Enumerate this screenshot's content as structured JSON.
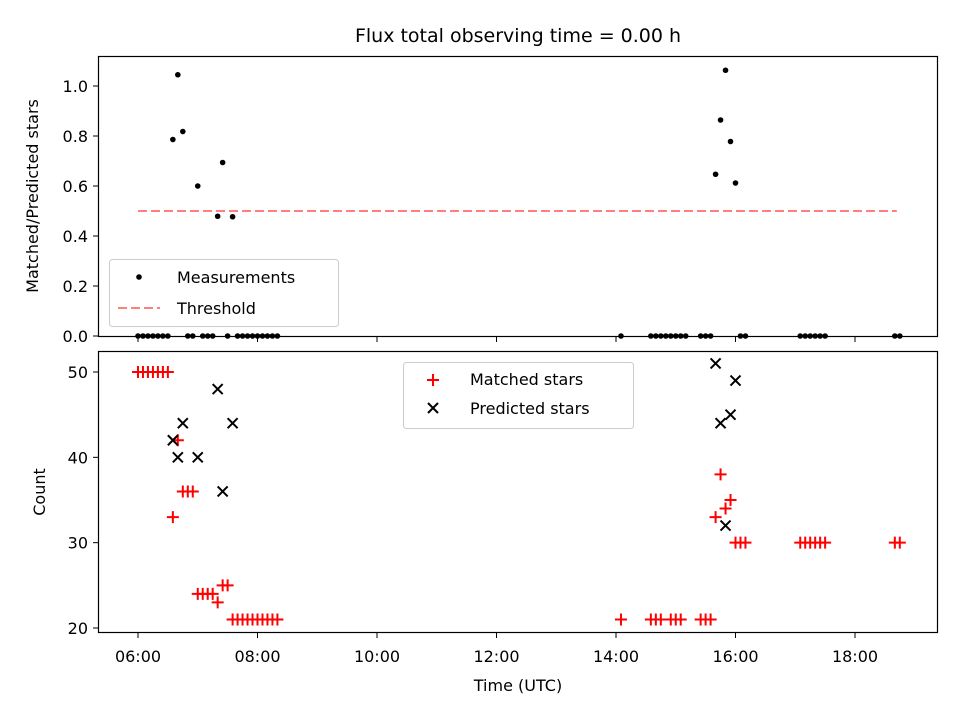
{
  "title": "Flux total observing time = 0.00 h",
  "xlabel": "Time (UTC)",
  "x_ticks": [
    "06:00",
    "08:00",
    "10:00",
    "12:00",
    "14:00",
    "16:00",
    "18:00"
  ],
  "chart_data": [
    {
      "type": "scatter",
      "ylabel": "Matched/Predicted stars",
      "ylim": [
        0,
        1.1
      ],
      "y_ticks": [
        "0.0",
        "0.2",
        "0.4",
        "0.6",
        "0.8",
        "1.0"
      ],
      "xlim": [
        "05:25",
        "19:25"
      ],
      "legend": {
        "placement": "bottom-left",
        "entries": [
          "Measurements",
          "Threshold"
        ]
      },
      "series": [
        {
          "name": "Measurements",
          "color": "#000000",
          "marker": "dot",
          "points": [
            [
              "06:00",
              0
            ],
            [
              "06:05",
              0
            ],
            [
              "06:10",
              0
            ],
            [
              "06:15",
              0
            ],
            [
              "06:20",
              0
            ],
            [
              "06:25",
              0
            ],
            [
              "06:30",
              0
            ],
            [
              "06:35",
              0.786
            ],
            [
              "06:40",
              1.045
            ],
            [
              "06:45",
              0.818
            ],
            [
              "06:50",
              0
            ],
            [
              "06:55",
              0
            ],
            [
              "07:00",
              0.6
            ],
            [
              "07:05",
              0
            ],
            [
              "07:10",
              0
            ],
            [
              "07:15",
              0
            ],
            [
              "07:20",
              0.479
            ],
            [
              "07:25",
              0.694
            ],
            [
              "07:30",
              0
            ],
            [
              "07:35",
              0.477
            ],
            [
              "07:40",
              0
            ],
            [
              "07:45",
              0
            ],
            [
              "07:50",
              0
            ],
            [
              "07:55",
              0
            ],
            [
              "08:00",
              0
            ],
            [
              "08:05",
              0
            ],
            [
              "08:10",
              0
            ],
            [
              "08:15",
              0
            ],
            [
              "08:20",
              0
            ],
            [
              "14:05",
              0
            ],
            [
              "14:35",
              0
            ],
            [
              "14:40",
              0
            ],
            [
              "14:45",
              0
            ],
            [
              "14:50",
              0
            ],
            [
              "14:55",
              0
            ],
            [
              "15:00",
              0
            ],
            [
              "15:05",
              0
            ],
            [
              "15:10",
              0
            ],
            [
              "15:25",
              0
            ],
            [
              "15:30",
              0
            ],
            [
              "15:35",
              0
            ],
            [
              "15:40",
              0.647
            ],
            [
              "15:45",
              0.864
            ],
            [
              "15:50",
              1.063
            ],
            [
              "15:55",
              0.778
            ],
            [
              "16:00",
              0.612
            ],
            [
              "16:05",
              0
            ],
            [
              "16:10",
              0
            ],
            [
              "17:05",
              0
            ],
            [
              "17:10",
              0
            ],
            [
              "17:15",
              0
            ],
            [
              "17:20",
              0
            ],
            [
              "17:25",
              0
            ],
            [
              "17:30",
              0
            ],
            [
              "18:40",
              0
            ],
            [
              "18:45",
              0
            ]
          ]
        },
        {
          "name": "Threshold",
          "color": "#ff7f7f",
          "style": "dashed",
          "points": [
            [
              "06:00",
              0.5
            ],
            [
              "18:42",
              0.5
            ]
          ]
        }
      ]
    },
    {
      "type": "scatter",
      "ylabel": "Count",
      "ylim": [
        19.5,
        52.9
      ],
      "y_ticks": [
        "20",
        "30",
        "40",
        "50"
      ],
      "xlim": [
        "05:25",
        "19:25"
      ],
      "legend": {
        "placement": "top-center",
        "entries": [
          "Matched stars",
          "Predicted stars"
        ]
      },
      "series": [
        {
          "name": "Matched stars",
          "color": "#ff0000",
          "marker": "plus",
          "points": [
            [
              "06:00",
              50
            ],
            [
              "06:05",
              50
            ],
            [
              "06:10",
              50
            ],
            [
              "06:15",
              50
            ],
            [
              "06:20",
              50
            ],
            [
              "06:25",
              50
            ],
            [
              "06:30",
              50
            ],
            [
              "06:35",
              33
            ],
            [
              "06:40",
              42
            ],
            [
              "06:45",
              36
            ],
            [
              "06:50",
              36
            ],
            [
              "06:55",
              36
            ],
            [
              "07:00",
              24
            ],
            [
              "07:05",
              24
            ],
            [
              "07:10",
              24
            ],
            [
              "07:15",
              24
            ],
            [
              "07:20",
              23
            ],
            [
              "07:25",
              25
            ],
            [
              "07:30",
              25
            ],
            [
              "07:35",
              21
            ],
            [
              "07:40",
              21
            ],
            [
              "07:45",
              21
            ],
            [
              "07:50",
              21
            ],
            [
              "07:55",
              21
            ],
            [
              "08:00",
              21
            ],
            [
              "08:05",
              21
            ],
            [
              "08:10",
              21
            ],
            [
              "08:15",
              21
            ],
            [
              "08:20",
              21
            ],
            [
              "14:05",
              21
            ],
            [
              "14:35",
              21
            ],
            [
              "14:40",
              21
            ],
            [
              "14:45",
              21
            ],
            [
              "14:55",
              21
            ],
            [
              "15:00",
              21
            ],
            [
              "15:05",
              21
            ],
            [
              "15:25",
              21
            ],
            [
              "15:30",
              21
            ],
            [
              "15:35",
              21
            ],
            [
              "15:40",
              33
            ],
            [
              "15:45",
              38
            ],
            [
              "15:50",
              34
            ],
            [
              "15:55",
              35
            ],
            [
              "16:00",
              30
            ],
            [
              "16:05",
              30
            ],
            [
              "16:10",
              30
            ],
            [
              "17:05",
              30
            ],
            [
              "17:10",
              30
            ],
            [
              "17:15",
              30
            ],
            [
              "17:20",
              30
            ],
            [
              "17:25",
              30
            ],
            [
              "17:30",
              30
            ],
            [
              "18:40",
              30
            ],
            [
              "18:45",
              30
            ]
          ]
        },
        {
          "name": "Predicted stars",
          "color": "#000000",
          "marker": "x",
          "points": [
            [
              "06:35",
              42
            ],
            [
              "06:40",
              40
            ],
            [
              "06:45",
              44
            ],
            [
              "07:00",
              40
            ],
            [
              "07:20",
              48
            ],
            [
              "07:25",
              36
            ],
            [
              "07:35",
              44
            ],
            [
              "15:40",
              51
            ],
            [
              "15:45",
              44
            ],
            [
              "15:50",
              32
            ],
            [
              "15:55",
              45
            ],
            [
              "16:00",
              49
            ]
          ]
        }
      ]
    }
  ]
}
